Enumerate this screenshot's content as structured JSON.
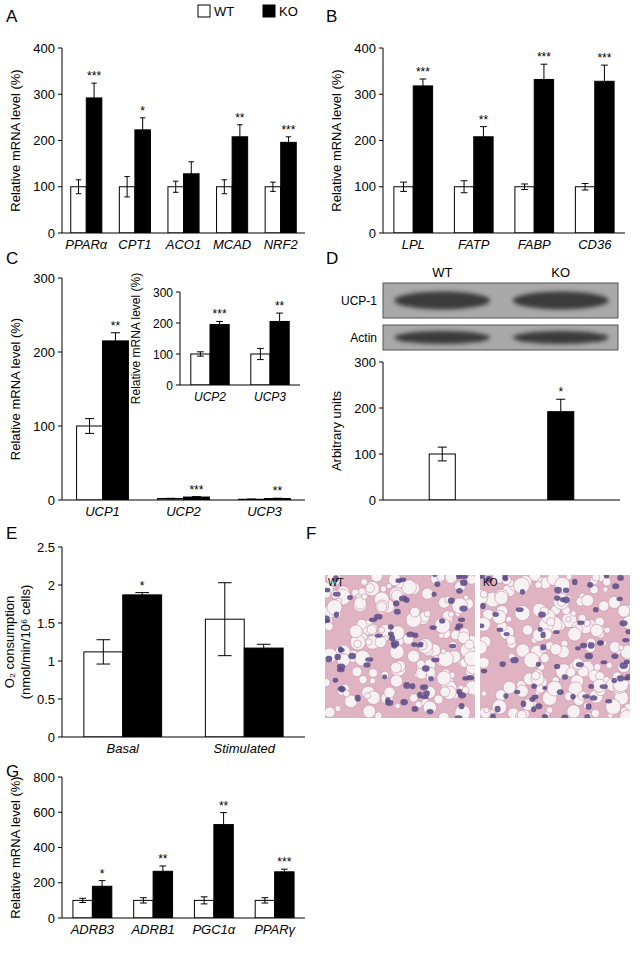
{
  "chart_data": [
    {
      "panel": "A",
      "type": "bar",
      "y_label": "Relative mRNA level (%)",
      "legend": "top",
      "categories": [
        "PPARα",
        "CPT1",
        "ACO1",
        "MCAD",
        "NRF2"
      ],
      "ylim": [
        0,
        400
      ],
      "yticks": [
        0,
        100,
        200,
        300,
        400
      ],
      "series": [
        {
          "name": "WT",
          "color": "#ffffff",
          "values": [
            100,
            100,
            100,
            100,
            100
          ],
          "errors": [
            15,
            22,
            12,
            15,
            10
          ]
        },
        {
          "name": "KO",
          "color": "#000000",
          "values": [
            292,
            223,
            128,
            208,
            196
          ],
          "errors": [
            32,
            26,
            26,
            26,
            12
          ],
          "significance": [
            "***",
            "*",
            null,
            "**",
            "***"
          ]
        }
      ]
    },
    {
      "panel": "B",
      "type": "bar",
      "y_label": "Relative mRNA level (%)",
      "categories": [
        "LPL",
        "FATP",
        "FABP",
        "CD36"
      ],
      "ylim": [
        0,
        400
      ],
      "yticks": [
        0,
        100,
        200,
        300,
        400
      ],
      "series": [
        {
          "color": "#ffffff",
          "values": [
            100,
            100,
            100,
            100
          ],
          "errors": [
            10,
            13,
            6,
            7
          ]
        },
        {
          "color": "#000000",
          "values": [
            318,
            208,
            332,
            328
          ],
          "errors": [
            15,
            22,
            33,
            35
          ],
          "significance": [
            "***",
            "**",
            "***",
            "***"
          ]
        }
      ]
    },
    {
      "panel": "C",
      "type": "bar",
      "y_label": "Relative mRNA level (%)",
      "categories": [
        "UCP1",
        "UCP2",
        "UCP3"
      ],
      "ylim": [
        0,
        300
      ],
      "yticks": [
        0,
        100,
        200,
        300
      ],
      "series": [
        {
          "color": "#ffffff",
          "values": [
            100,
            2,
            1
          ],
          "errors": [
            10,
            0.3,
            0.3
          ]
        },
        {
          "color": "#000000",
          "values": [
            215,
            4,
            2
          ],
          "errors": [
            11,
            0.5,
            0.4
          ],
          "significance": [
            "**",
            "***",
            "**"
          ]
        }
      ],
      "inset": {
        "type": "bar",
        "y_label": "Relative mRNA level (%)",
        "categories": [
          "UCP2",
          "UCP3"
        ],
        "ylim": [
          0,
          300
        ],
        "yticks": [
          0,
          100,
          200,
          300
        ],
        "series": [
          {
            "color": "#ffffff",
            "values": [
              100,
              100
            ],
            "errors": [
              7,
              18
            ]
          },
          {
            "color": "#000000",
            "values": [
              195,
              205
            ],
            "errors": [
              10,
              27
            ],
            "significance": [
              "***",
              "**"
            ]
          }
        ]
      }
    },
    {
      "panel": "D",
      "type": "bar",
      "y_label": "Arbitrary units",
      "blot": {
        "lanes": [
          "WT",
          "KO"
        ],
        "bands": [
          "UCP-1",
          "Actin"
        ]
      },
      "categories": [
        null,
        null
      ],
      "ylim": [
        0,
        300
      ],
      "yticks": [
        0,
        100,
        200,
        300
      ],
      "series": [
        {
          "colors": [
            "#ffffff",
            "#000000"
          ],
          "values": [
            100,
            192
          ],
          "errors": [
            15,
            27
          ],
          "significance": [
            null,
            "*"
          ]
        }
      ]
    },
    {
      "panel": "E",
      "type": "bar",
      "y_label": [
        "O₂ consumption",
        "(nmol/min/10⁶ cells)"
      ],
      "categories": [
        "Basal",
        "Stimulated"
      ],
      "ylim": [
        0,
        2.5
      ],
      "yticks": [
        0,
        0.5,
        1,
        1.5,
        2,
        2.5
      ],
      "series": [
        {
          "color": "#ffffff",
          "values": [
            1.12,
            1.55
          ],
          "errors": [
            0.16,
            0.48
          ]
        },
        {
          "color": "#000000",
          "values": [
            1.87,
            1.17
          ],
          "errors": [
            0.03,
            0.05
          ],
          "significance": [
            "*",
            null
          ]
        }
      ]
    },
    {
      "panel": "F",
      "type": "image",
      "images": [
        "WT",
        "KO"
      ]
    },
    {
      "panel": "G",
      "type": "bar",
      "y_label": "Relative mRNA level (%)",
      "categories": [
        "ADRB3",
        "ADRB1",
        "PGC1α",
        "PPARγ"
      ],
      "ylim": [
        0,
        800
      ],
      "yticks": [
        0,
        200,
        400,
        600,
        800
      ],
      "series": [
        {
          "color": "#ffffff",
          "values": [
            100,
            100,
            100,
            100
          ],
          "errors": [
            12,
            15,
            20,
            15
          ]
        },
        {
          "color": "#000000",
          "values": [
            180,
            265,
            530,
            262
          ],
          "errors": [
            32,
            30,
            68,
            15
          ],
          "significance": [
            "*",
            "**",
            "**",
            "***"
          ]
        }
      ]
    }
  ]
}
